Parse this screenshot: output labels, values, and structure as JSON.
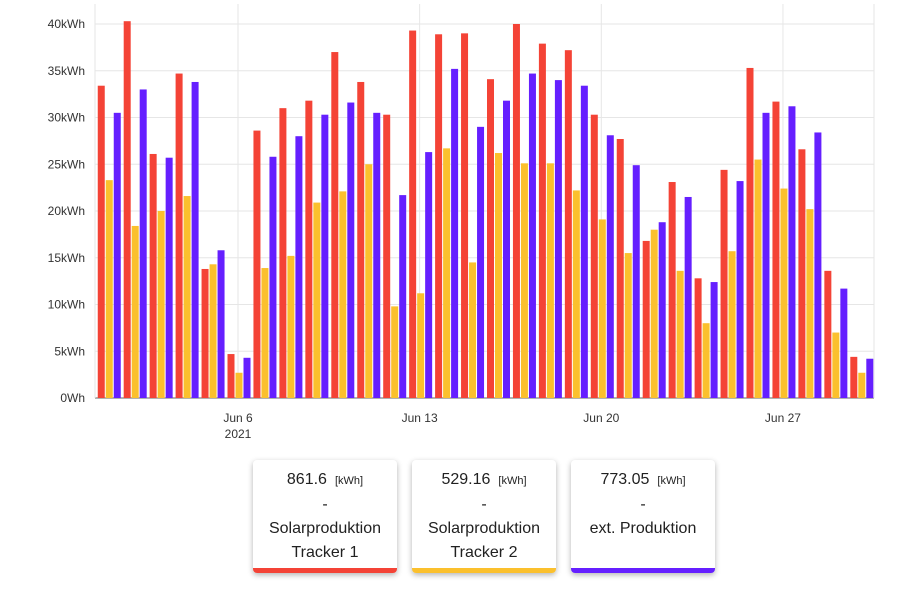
{
  "chart_data": {
    "type": "bar",
    "y_unit": "kWh",
    "ylim": [
      0,
      40000
    ],
    "y_ticks": [
      "0Wh",
      "5kWh",
      "10kWh",
      "15kWh",
      "20kWh",
      "25kWh",
      "30kWh",
      "35kWh",
      "40kWh"
    ],
    "x_ticks": [
      {
        "day": 6,
        "label": "Jun 6",
        "sub": "2021"
      },
      {
        "day": 13,
        "label": "Jun 13",
        "sub": ""
      },
      {
        "day": 20,
        "label": "Jun 20",
        "sub": ""
      },
      {
        "day": 27,
        "label": "Jun 27",
        "sub": ""
      }
    ],
    "categories": [
      "2021-06-01",
      "2021-06-02",
      "2021-06-03",
      "2021-06-04",
      "2021-06-05",
      "2021-06-06",
      "2021-06-07",
      "2021-06-08",
      "2021-06-09",
      "2021-06-10",
      "2021-06-11",
      "2021-06-12",
      "2021-06-13",
      "2021-06-14",
      "2021-06-15",
      "2021-06-16",
      "2021-06-17",
      "2021-06-18",
      "2021-06-19",
      "2021-06-20",
      "2021-06-21",
      "2021-06-22",
      "2021-06-23",
      "2021-06-24",
      "2021-06-25",
      "2021-06-26",
      "2021-06-27",
      "2021-06-28",
      "2021-06-29",
      "2021-06-30"
    ],
    "grid": true,
    "series": [
      {
        "name": "Solarproduktion Tracker 1",
        "color": "#f44336",
        "values": [
          33.4,
          40.3,
          26.1,
          34.7,
          13.8,
          4.7,
          28.6,
          31.0,
          31.8,
          37.0,
          33.8,
          30.3,
          39.3,
          38.9,
          39.0,
          34.1,
          40.0,
          37.9,
          37.2,
          30.3,
          27.7,
          16.8,
          23.1,
          12.8,
          24.4,
          35.3,
          31.7,
          26.6,
          13.6,
          4.4
        ]
      },
      {
        "name": "Solarproduktion Tracker 2",
        "color": "#fbc02d",
        "values": [
          23.3,
          18.4,
          20.0,
          21.6,
          14.3,
          2.7,
          13.9,
          15.2,
          20.9,
          22.1,
          25.0,
          9.8,
          11.2,
          26.7,
          14.5,
          26.2,
          25.1,
          25.1,
          22.2,
          19.1,
          15.5,
          18.0,
          13.6,
          8.0,
          15.7,
          25.5,
          22.4,
          20.2,
          7.0,
          2.7
        ]
      },
      {
        "name": "ext. Produktion",
        "color": "#651fff",
        "values": [
          30.5,
          33.0,
          25.7,
          33.8,
          15.8,
          4.3,
          25.8,
          28.0,
          30.3,
          31.6,
          30.5,
          21.7,
          26.3,
          35.2,
          29.0,
          31.8,
          34.7,
          34.0,
          33.4,
          28.1,
          24.9,
          18.8,
          21.5,
          12.4,
          23.2,
          30.5,
          31.2,
          28.4,
          11.7,
          4.2
        ]
      }
    ]
  },
  "cards": [
    {
      "value": "861.6",
      "unit": "[kWh]",
      "sep": "-",
      "line1": "Solarproduktion",
      "line2": "Tracker 1",
      "color": "#f44336"
    },
    {
      "value": "529.16",
      "unit": "[kWh]",
      "sep": "-",
      "line1": "Solarproduktion",
      "line2": "Tracker 2",
      "color": "#fbc02d"
    },
    {
      "value": "773.05",
      "unit": "[kWh]",
      "sep": "-",
      "line1": "ext. Produktion",
      "line2": "",
      "color": "#651fff"
    }
  ]
}
